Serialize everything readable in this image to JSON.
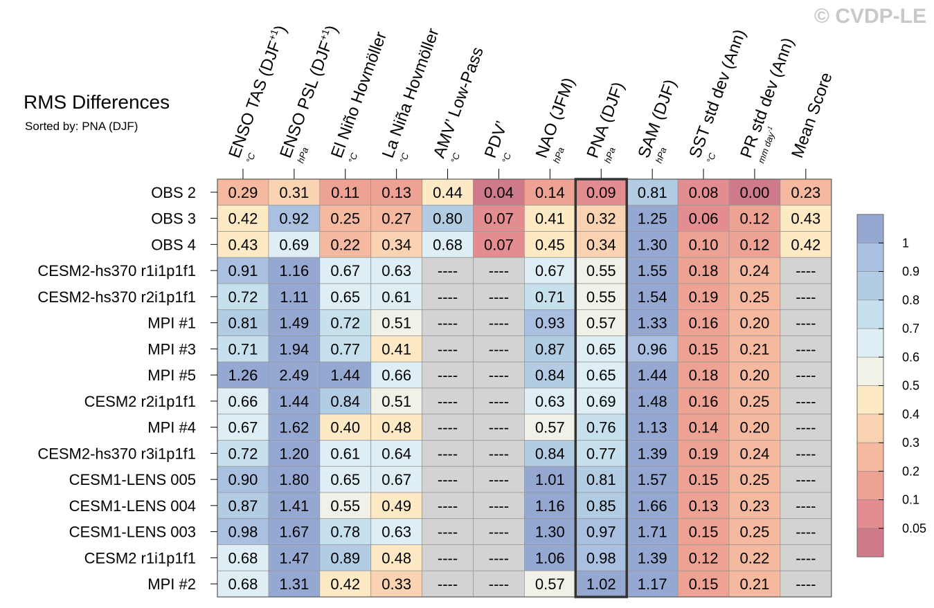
{
  "watermark": "© CVDP-LE",
  "title": "RMS Differences",
  "subtitle": "Sorted by: PNA (DJF)",
  "chart_data": {
    "type": "heatmap",
    "highlight_column": "PNA (DJF)",
    "missing_text": "----",
    "columns": [
      {
        "name": "ENSO TAS (DJF",
        "sup": "+1",
        "tail": ")",
        "unit": "°C"
      },
      {
        "name": "ENSO PSL (DJF",
        "sup": "+1",
        "tail": ")",
        "unit": "hPa"
      },
      {
        "name": "El Niño Hovmöller",
        "sup": "",
        "tail": "",
        "unit": "°C"
      },
      {
        "name": "La Niña Hovmöller",
        "sup": "",
        "tail": "",
        "unit": "°C"
      },
      {
        "name": "AMV’ Low-Pass",
        "sup": "",
        "tail": "",
        "unit": "°C"
      },
      {
        "name": "PDV’",
        "sup": "",
        "tail": "",
        "unit": "°C"
      },
      {
        "name": "NAO (JFM)",
        "sup": "",
        "tail": "",
        "unit": "hPa"
      },
      {
        "name": "PNA (DJF)",
        "sup": "",
        "tail": "",
        "unit": "hPa"
      },
      {
        "name": "SAM (DJF)",
        "sup": "",
        "tail": "",
        "unit": "hPa"
      },
      {
        "name": "SST std dev (Ann)",
        "sup": "",
        "tail": "",
        "unit": "°C"
      },
      {
        "name": "PR std dev (Ann)",
        "sup": "",
        "tail": "",
        "unit": "mm day",
        "unit_sup": "-1"
      },
      {
        "name": "Mean Score",
        "sup": "",
        "tail": "",
        "unit": ""
      }
    ],
    "rows": [
      {
        "label": "OBS 2",
        "values": [
          "0.29",
          "0.31",
          "0.11",
          "0.13",
          "0.44",
          "0.04",
          "0.14",
          "0.09",
          "0.81",
          "0.08",
          "0.00",
          "0.23"
        ]
      },
      {
        "label": "OBS 3",
        "values": [
          "0.42",
          "0.92",
          "0.25",
          "0.27",
          "0.80",
          "0.07",
          "0.41",
          "0.32",
          "1.25",
          "0.06",
          "0.12",
          "0.43"
        ]
      },
      {
        "label": "OBS 4",
        "values": [
          "0.43",
          "0.69",
          "0.22",
          "0.34",
          "0.68",
          "0.07",
          "0.45",
          "0.34",
          "1.30",
          "0.10",
          "0.12",
          "0.42"
        ]
      },
      {
        "label": "CESM2-hs370 r1i1p1f1",
        "values": [
          "0.91",
          "1.16",
          "0.67",
          "0.63",
          "----",
          "----",
          "0.67",
          "0.55",
          "1.55",
          "0.18",
          "0.24",
          "----"
        ]
      },
      {
        "label": "CESM2-hs370 r2i1p1f1",
        "values": [
          "0.72",
          "1.11",
          "0.65",
          "0.61",
          "----",
          "----",
          "0.71",
          "0.55",
          "1.54",
          "0.19",
          "0.25",
          "----"
        ]
      },
      {
        "label": "MPI #1",
        "values": [
          "0.81",
          "1.49",
          "0.72",
          "0.51",
          "----",
          "----",
          "0.93",
          "0.57",
          "1.33",
          "0.16",
          "0.20",
          "----"
        ]
      },
      {
        "label": "MPI #3",
        "values": [
          "0.71",
          "1.94",
          "0.77",
          "0.41",
          "----",
          "----",
          "0.87",
          "0.65",
          "0.96",
          "0.15",
          "0.21",
          "----"
        ]
      },
      {
        "label": "MPI #5",
        "values": [
          "1.26",
          "2.49",
          "1.44",
          "0.66",
          "----",
          "----",
          "0.84",
          "0.65",
          "1.44",
          "0.18",
          "0.20",
          "----"
        ]
      },
      {
        "label": "CESM2 r2i1p1f1",
        "values": [
          "0.66",
          "1.44",
          "0.84",
          "0.51",
          "----",
          "----",
          "0.63",
          "0.69",
          "1.48",
          "0.16",
          "0.25",
          "----"
        ]
      },
      {
        "label": "MPI #4",
        "values": [
          "0.67",
          "1.62",
          "0.40",
          "0.48",
          "----",
          "----",
          "0.57",
          "0.76",
          "1.13",
          "0.14",
          "0.20",
          "----"
        ]
      },
      {
        "label": "CESM2-hs370 r3i1p1f1",
        "values": [
          "0.72",
          "1.20",
          "0.61",
          "0.64",
          "----",
          "----",
          "0.84",
          "0.77",
          "1.39",
          "0.19",
          "0.24",
          "----"
        ]
      },
      {
        "label": "CESM1-LENS 005",
        "values": [
          "0.90",
          "1.80",
          "0.65",
          "0.67",
          "----",
          "----",
          "1.01",
          "0.81",
          "1.57",
          "0.15",
          "0.25",
          "----"
        ]
      },
      {
        "label": "CESM1-LENS 004",
        "values": [
          "0.87",
          "1.41",
          "0.55",
          "0.49",
          "----",
          "----",
          "1.16",
          "0.85",
          "1.66",
          "0.13",
          "0.23",
          "----"
        ]
      },
      {
        "label": "CESM1-LENS 003",
        "values": [
          "0.98",
          "1.67",
          "0.78",
          "0.63",
          "----",
          "----",
          "1.30",
          "0.97",
          "1.71",
          "0.15",
          "0.25",
          "----"
        ]
      },
      {
        "label": "CESM2 r1i1p1f1",
        "values": [
          "0.68",
          "1.47",
          "0.89",
          "0.48",
          "----",
          "----",
          "1.06",
          "0.98",
          "1.39",
          "0.12",
          "0.22",
          "----"
        ]
      },
      {
        "label": "MPI #2",
        "values": [
          "0.68",
          "1.31",
          "0.42",
          "0.33",
          "----",
          "----",
          "0.57",
          "1.02",
          "1.17",
          "0.15",
          "0.21",
          "----"
        ]
      }
    ],
    "colorbar": {
      "levels": [
        0.05,
        0.1,
        0.2,
        0.3,
        0.4,
        0.5,
        0.6,
        0.7,
        0.8,
        0.9,
        1
      ],
      "labels": [
        "0.05",
        "0.1",
        "0.2",
        "0.3",
        "0.4",
        "0.5",
        "0.6",
        "0.7",
        "0.8",
        "0.9",
        "1"
      ],
      "colors": [
        "#cf7a8a",
        "#e38d90",
        "#eda293",
        "#f5b99f",
        "#f9d3b2",
        "#fde9c4",
        "#f1f1e7",
        "#deeef4",
        "#c6e0ee",
        "#b1cce3",
        "#a9c0e0",
        "#95a8d2"
      ],
      "missing_color": "#d3d3d3",
      "highlight_color": "#333333"
    }
  }
}
